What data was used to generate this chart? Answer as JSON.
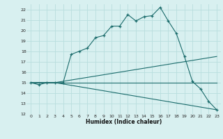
{
  "title": "",
  "xlabel": "Humidex (Indice chaleur)",
  "bg_color": "#d8f0f0",
  "grid_color": "#b8dede",
  "line_color": "#1a6b6b",
  "line1_x": [
    0,
    1,
    2,
    3,
    4,
    5,
    6,
    7,
    8,
    9,
    10,
    11,
    12,
    13,
    14,
    15,
    16,
    17,
    18,
    19,
    20,
    21,
    22,
    23
  ],
  "line1_y": [
    15,
    14.8,
    15,
    15,
    15,
    17.7,
    18,
    18.3,
    19.3,
    19.5,
    20.4,
    20.4,
    21.5,
    20.9,
    21.3,
    21.4,
    22.2,
    20.9,
    19.7,
    17.5,
    15.1,
    14.4,
    13.2,
    12.4
  ],
  "line2_x": [
    0,
    3,
    23
  ],
  "line2_y": [
    15,
    15,
    15
  ],
  "line3_x": [
    0,
    3,
    23
  ],
  "line3_y": [
    15,
    15,
    12.4
  ],
  "line4_x": [
    0,
    3,
    23
  ],
  "line4_y": [
    15,
    15,
    17.5
  ],
  "xlim": [
    -0.5,
    23.5
  ],
  "ylim": [
    12,
    22.5
  ],
  "yticks": [
    12,
    13,
    14,
    15,
    16,
    17,
    18,
    19,
    20,
    21,
    22
  ],
  "xticks": [
    0,
    1,
    2,
    3,
    4,
    5,
    6,
    7,
    8,
    9,
    10,
    11,
    12,
    13,
    14,
    15,
    16,
    17,
    18,
    19,
    20,
    21,
    22,
    23
  ]
}
